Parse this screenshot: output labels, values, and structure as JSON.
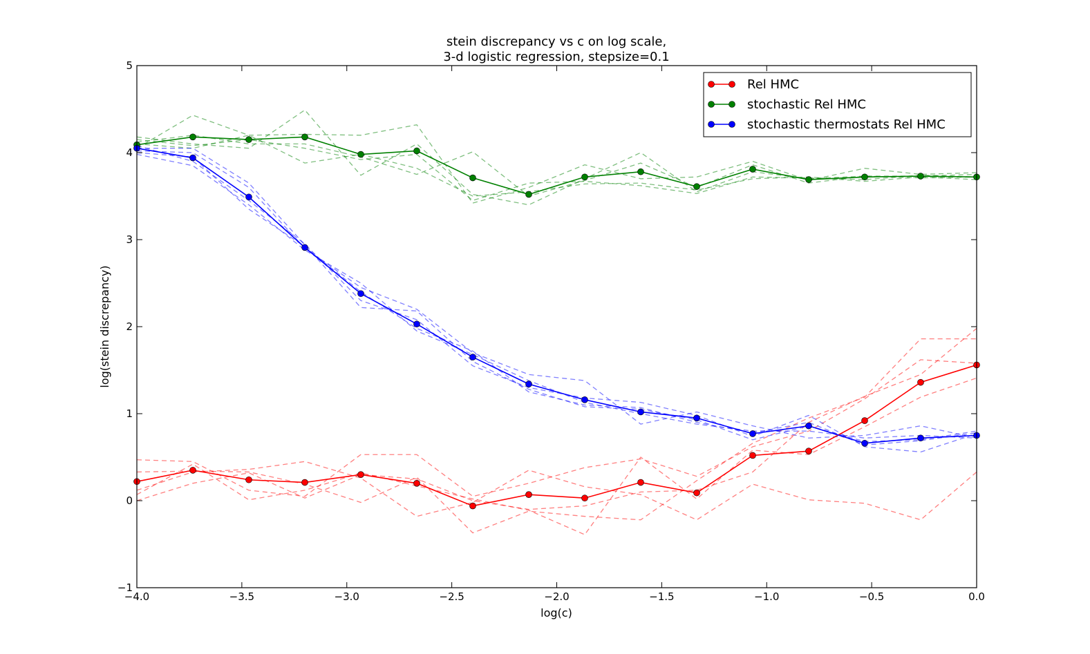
{
  "chart_data": {
    "type": "line",
    "title": "stein discrepancy vs c on log scale,",
    "subtitle": "3-d logistic regression, stepsize=0.1",
    "xlabel": "log(c)",
    "ylabel": "log(stein discrepancy)",
    "xlim": [
      -4.0,
      0.0
    ],
    "ylim": [
      -1,
      5
    ],
    "xticks": [
      -4.0,
      -3.5,
      -3.0,
      -2.5,
      -2.0,
      -1.5,
      -1.0,
      -0.5,
      0.0
    ],
    "xtick_labels": [
      "−4.0",
      "−3.5",
      "−3.0",
      "−2.5",
      "−2.0",
      "−1.5",
      "−1.0",
      "−0.5",
      "0.0"
    ],
    "yticks": [
      -1,
      0,
      1,
      2,
      3,
      4,
      5
    ],
    "ytick_labels": [
      "−1",
      "0",
      "1",
      "2",
      "3",
      "4",
      "5"
    ],
    "grid": false,
    "legend_position": "top-right",
    "x": [
      -4.0,
      -3.7333,
      -3.4667,
      -3.2,
      -2.9333,
      -2.6667,
      -2.4,
      -2.1333,
      -1.8667,
      -1.6,
      -1.3333,
      -1.0667,
      -0.8,
      -0.5333,
      -0.2667,
      0.0
    ],
    "series": [
      {
        "name": "Rel HMC",
        "color": "#ff0000",
        "values": [
          0.22,
          0.35,
          0.24,
          0.21,
          0.3,
          0.2,
          -0.06,
          0.07,
          0.03,
          0.21,
          0.09,
          0.52,
          0.57,
          0.92,
          1.36,
          1.56
        ],
        "runs": [
          [
            0.47,
            0.45,
            0.12,
            0.05,
            0.53,
            0.53,
            0.05,
            0.2,
            0.38,
            0.48,
            0.28,
            0.62,
            0.8,
            1.17,
            1.62,
            1.58
          ],
          [
            0.12,
            0.33,
            0.36,
            0.45,
            0.26,
            -0.18,
            -0.02,
            0.35,
            0.16,
            0.07,
            -0.22,
            0.19,
            0.01,
            -0.03,
            -0.22,
            0.33
          ],
          [
            0.33,
            0.34,
            0.33,
            0.19,
            -0.02,
            0.27,
            -0.37,
            -0.12,
            -0.18,
            -0.22,
            0.23,
            0.66,
            0.95,
            1.19,
            1.86,
            1.86
          ],
          [
            0.07,
            0.42,
            0.01,
            0.12,
            0.32,
            0.17,
            0.02,
            -0.11,
            -0.39,
            0.5,
            0.02,
            0.58,
            0.53,
            0.85,
            1.19,
            1.41
          ],
          [
            0.0,
            0.2,
            0.32,
            0.03,
            0.3,
            0.25,
            0.0,
            -0.1,
            -0.06,
            0.1,
            0.12,
            0.33,
            0.9,
            1.2,
            1.45,
            1.98
          ]
        ]
      },
      {
        "name": "stochastic Rel HMC",
        "color": "#008000",
        "values": [
          4.09,
          4.18,
          4.15,
          4.18,
          3.98,
          4.02,
          3.71,
          3.52,
          3.72,
          3.78,
          3.61,
          3.81,
          3.69,
          3.72,
          3.73,
          3.72
        ],
        "runs": [
          [
            4.05,
            4.43,
            4.2,
            4.21,
            4.2,
            4.32,
            3.42,
            3.6,
            3.86,
            3.7,
            3.72,
            3.9,
            3.68,
            3.82,
            3.75,
            3.77
          ],
          [
            4.18,
            4.1,
            4.05,
            4.49,
            3.74,
            4.1,
            3.52,
            3.4,
            3.7,
            4.0,
            3.55,
            3.78,
            3.7,
            3.73,
            3.73,
            3.75
          ],
          [
            4.1,
            4.05,
            4.2,
            3.88,
            3.98,
            3.82,
            3.5,
            3.55,
            3.64,
            3.65,
            3.57,
            3.7,
            3.72,
            3.67,
            3.72,
            3.69
          ],
          [
            4.12,
            4.2,
            4.1,
            4.1,
            3.95,
            3.75,
            4.01,
            3.5,
            3.68,
            3.88,
            3.6,
            3.86,
            3.65,
            3.73,
            3.71,
            3.72
          ],
          [
            4.15,
            4.08,
            4.15,
            4.05,
            3.92,
            3.98,
            3.45,
            3.65,
            3.67,
            3.62,
            3.53,
            3.72,
            3.71,
            3.69,
            3.74,
            3.72
          ]
        ]
      },
      {
        "name": "stochastic thermostats Rel HMC",
        "color": "#0000ff",
        "values": [
          4.05,
          3.94,
          3.49,
          2.91,
          2.38,
          2.03,
          1.65,
          1.34,
          1.16,
          1.02,
          0.95,
          0.77,
          0.86,
          0.66,
          0.72,
          0.75
        ],
        "runs": [
          [
            4.02,
            4.0,
            3.6,
            2.9,
            2.45,
            2.2,
            1.7,
            1.45,
            1.38,
            0.88,
            1.02,
            0.86,
            0.72,
            0.75,
            0.86,
            0.72
          ],
          [
            4.08,
            3.9,
            3.45,
            2.95,
            2.3,
            2.08,
            1.55,
            1.3,
            1.18,
            1.13,
            0.98,
            0.74,
            0.98,
            0.62,
            0.56,
            0.77
          ],
          [
            3.98,
            3.85,
            3.4,
            2.88,
            2.5,
            1.95,
            1.68,
            1.38,
            1.13,
            1.0,
            0.88,
            0.8,
            0.8,
            0.72,
            0.75,
            0.72
          ],
          [
            4.05,
            4.05,
            3.65,
            2.94,
            2.22,
            2.18,
            1.6,
            1.28,
            1.08,
            1.05,
            0.93,
            0.7,
            0.86,
            0.68,
            0.7,
            0.8
          ],
          [
            4.0,
            3.95,
            3.35,
            2.92,
            2.4,
            1.98,
            1.72,
            1.25,
            1.1,
            1.07,
            0.9,
            0.78,
            0.9,
            0.64,
            0.69,
            0.78
          ]
        ]
      }
    ]
  }
}
